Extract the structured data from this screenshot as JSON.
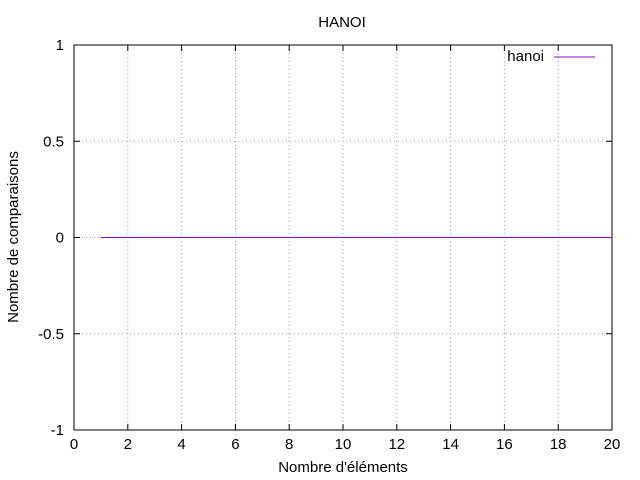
{
  "chart_data": {
    "type": "line",
    "title": "HANOI",
    "xlabel": "Nombre d'éléments",
    "ylabel": "Nombre de comparaisons",
    "xlim": [
      0,
      20
    ],
    "ylim": [
      -1,
      1
    ],
    "xticks": [
      0,
      2,
      4,
      6,
      8,
      10,
      12,
      14,
      16,
      18,
      20
    ],
    "yticks": [
      -1,
      -0.5,
      0,
      0.5,
      1
    ],
    "grid": true,
    "legend_position": "top-right",
    "series": [
      {
        "name": "hanoi",
        "color": "#9400d3",
        "x": [
          1,
          2,
          3,
          4,
          5,
          6,
          7,
          8,
          9,
          10,
          11,
          12,
          13,
          14,
          15,
          16,
          17,
          18,
          19,
          20
        ],
        "y": [
          0,
          0,
          0,
          0,
          0,
          0,
          0,
          0,
          0,
          0,
          0,
          0,
          0,
          0,
          0,
          0,
          0,
          0,
          0,
          0
        ]
      }
    ]
  }
}
